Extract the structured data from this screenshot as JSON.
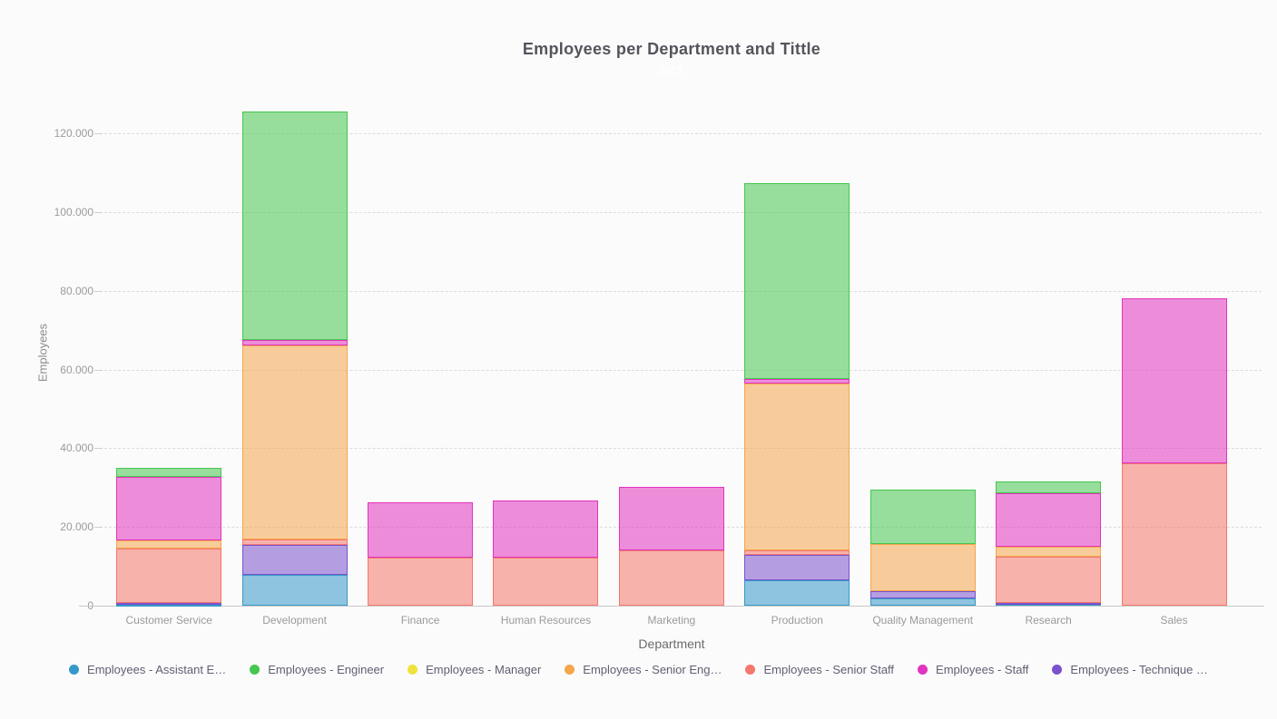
{
  "chart_data": {
    "type": "bar",
    "stacked": true,
    "title": "Employees per Department and Tittle",
    "subtitle": "DES",
    "xlabel": "Department",
    "ylabel": "Employees",
    "ylim": [
      0,
      130000
    ],
    "grid": "horizontal-dashed",
    "legend_position": "bottom",
    "number_format": "thousands-dot-separator",
    "yticks": [
      {
        "value": 0,
        "label": "0"
      },
      {
        "value": 20000,
        "label": "20.000"
      },
      {
        "value": 40000,
        "label": "40.000"
      },
      {
        "value": 60000,
        "label": "60.000"
      },
      {
        "value": 80000,
        "label": "80.000"
      },
      {
        "value": 100000,
        "label": "100.000"
      },
      {
        "value": 120000,
        "label": "120.000"
      }
    ],
    "categories": [
      "Customer Service",
      "Development",
      "Finance",
      "Human Resources",
      "Marketing",
      "Production",
      "Quality Management",
      "Research",
      "Sales"
    ],
    "stack_order": [
      "Employees - Assistant Engineer",
      "Employees - Technique Leader",
      "Employees - Senior Staff",
      "Employees - Manager",
      "Employees - Senior Engineer",
      "Employees - Staff",
      "Employees - Engineer"
    ],
    "series": [
      {
        "name": "Employees - Assistant Engineer",
        "legend_label": "Employees - Assistant E…",
        "color": "#3598C8",
        "values": [
          298,
          7769,
          0,
          0,
          0,
          6445,
          1831,
          350,
          0
        ]
      },
      {
        "name": "Employees - Engineer",
        "legend_label": "Employees - Engineer",
        "color": "#45C74F",
        "values": [
          2362,
          58135,
          0,
          0,
          0,
          49649,
          13852,
          2950,
          0
        ]
      },
      {
        "name": "Employees - Manager",
        "legend_label": "Employees - Manager",
        "color": "#EFE23D",
        "values": [
          4,
          2,
          2,
          2,
          2,
          4,
          4,
          2,
          2
        ]
      },
      {
        "name": "Employees - Senior Engineer",
        "legend_label": "Employees - Senior Eng…",
        "color": "#F5A54A",
        "values": [
          2027,
          49326,
          0,
          0,
          0,
          42205,
          11864,
          2500,
          0
        ]
      },
      {
        "name": "Employees - Senior Staff",
        "legend_label": "Employees - Senior Staff",
        "color": "#F4776C",
        "values": [
          13925,
          1247,
          12139,
          12274,
          13940,
          1123,
          0,
          11700,
          36191
        ]
      },
      {
        "name": "Employees - Staff",
        "legend_label": "Employees - Staff",
        "color": "#E233BF",
        "values": [
          16150,
          1424,
          14121,
          14342,
          16196,
          1318,
          0,
          13700,
          41808
        ]
      },
      {
        "name": "Employees - Technique Leader",
        "legend_label": "Employees - Technique …",
        "color": "#7A52CC",
        "values": [
          309,
          7683,
          0,
          0,
          0,
          6557,
          1934,
          400,
          0
        ]
      }
    ]
  }
}
